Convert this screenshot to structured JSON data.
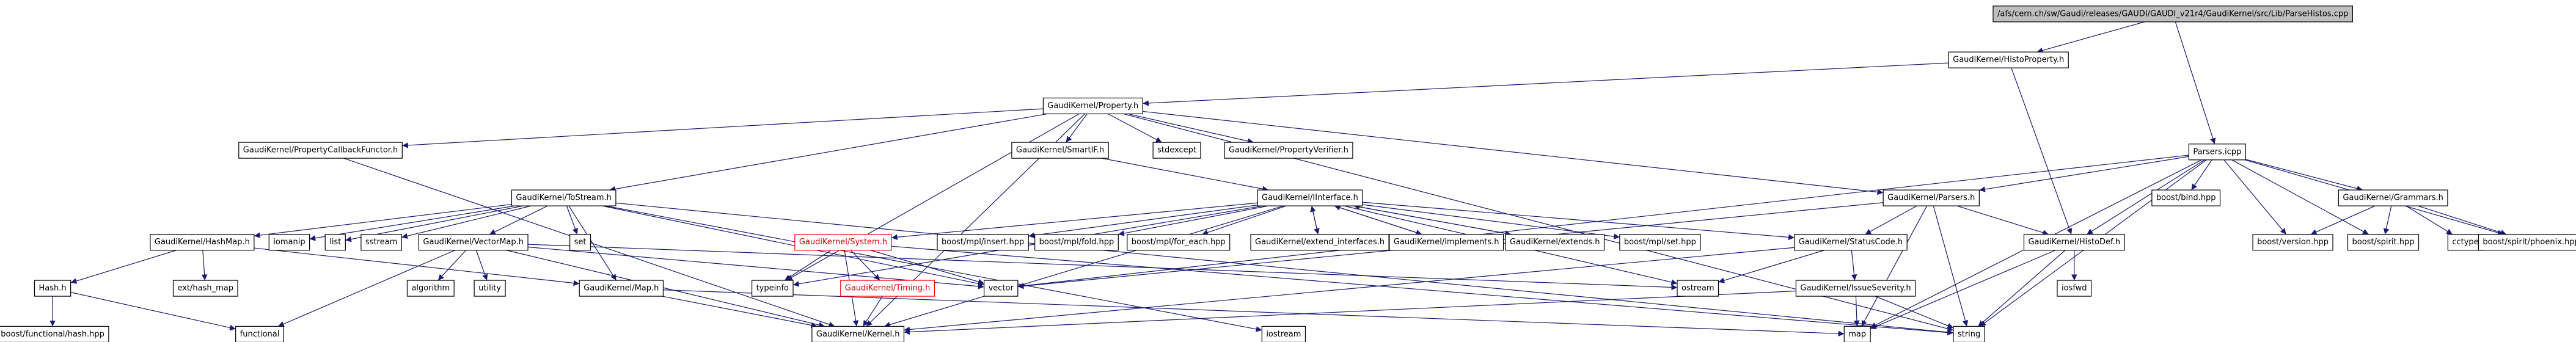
{
  "nodes": [
    {
      "label": "/afs/cern.ch/sw/Gaudi/releases/GAUDI/GAUDI_v21r4/GaudiKernel/src/Lib/ParseHistos.cpp"
    },
    {
      "label": "GaudiKernel/HistoProperty.h"
    },
    {
      "label": "GaudiKernel/Property.h"
    },
    {
      "label": "Parsers.icpp"
    },
    {
      "label": "GaudiKernel/PropertyCallbackFunctor.h"
    },
    {
      "label": "GaudiKernel/SmartIF.h"
    },
    {
      "label": "stdexcept"
    },
    {
      "label": "GaudiKernel/PropertyVerifier.h"
    },
    {
      "label": "GaudiKernel/ToStream.h"
    },
    {
      "label": "GaudiKernel/IInterface.h"
    },
    {
      "label": "GaudiKernel/Parsers.h"
    },
    {
      "label": "GaudiKernel/Grammars.h"
    },
    {
      "label": "boost/bind.hpp"
    },
    {
      "label": "GaudiKernel/HashMap.h"
    },
    {
      "label": "iomanip"
    },
    {
      "label": "list"
    },
    {
      "label": "sstream"
    },
    {
      "label": "GaudiKernel/VectorMap.h"
    },
    {
      "label": "set"
    },
    {
      "label": "GaudiKernel/System.h"
    },
    {
      "label": "boost/mpl/insert.hpp"
    },
    {
      "label": "boost/mpl/fold.hpp"
    },
    {
      "label": "boost/mpl/for_each.hpp"
    },
    {
      "label": "GaudiKernel/extend_interfaces.h"
    },
    {
      "label": "GaudiKernel/implements.h"
    },
    {
      "label": "GaudiKernel/extends.h"
    },
    {
      "label": "boost/mpl/set.hpp"
    },
    {
      "label": "GaudiKernel/StatusCode.h"
    },
    {
      "label": "boost/version.hpp"
    },
    {
      "label": "boost/spirit.hpp"
    },
    {
      "label": "cctype"
    },
    {
      "label": "boost/spirit/phoenix.hpp"
    },
    {
      "label": "Hash.h"
    },
    {
      "label": "ext/hash_map"
    },
    {
      "label": "algorithm"
    },
    {
      "label": "utility"
    },
    {
      "label": "GaudiKernel/Map.h"
    },
    {
      "label": "typeinfo"
    },
    {
      "label": "GaudiKernel/Timing.h"
    },
    {
      "label": "vector"
    },
    {
      "label": "ostream"
    },
    {
      "label": "GaudiKernel/HistoDef.h"
    },
    {
      "label": "GaudiKernel/IssueSeverity.h"
    },
    {
      "label": "iosfwd"
    },
    {
      "label": "boost/functional/hash.hpp"
    },
    {
      "label": "functional"
    },
    {
      "label": "GaudiKernel/Kernel.h"
    },
    {
      "label": "iostream"
    },
    {
      "label": "map"
    },
    {
      "label": "string"
    }
  ]
}
